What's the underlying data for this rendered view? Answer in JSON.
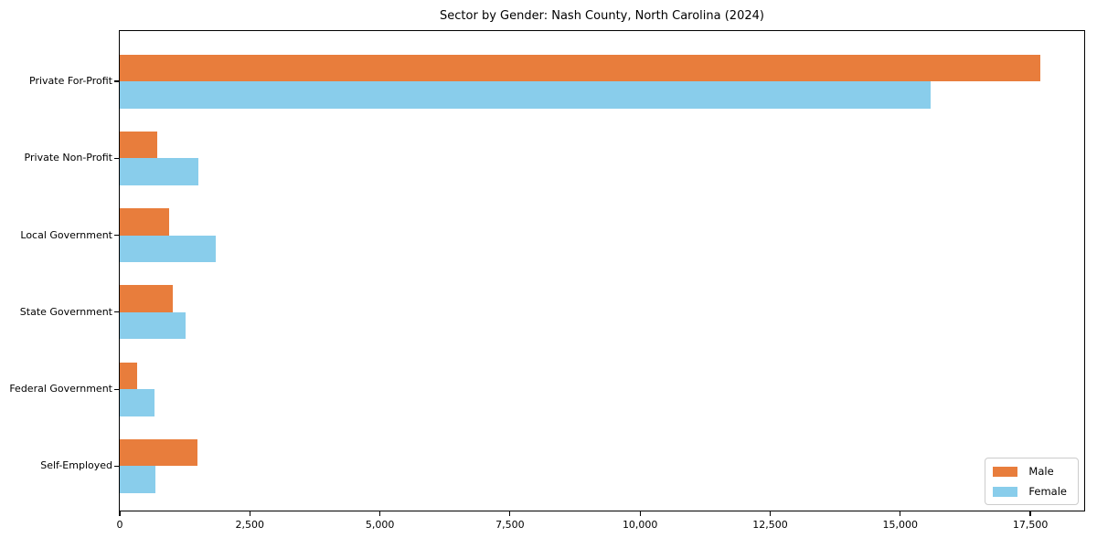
{
  "title": "Sector by Gender: Nash County, North Carolina (2024)",
  "colors": {
    "male": "#e87d3c",
    "female": "#89cdeb",
    "axis": "#000000",
    "legend_border": "#cccccc",
    "background": "#ffffff"
  },
  "legend": {
    "position": "lower right",
    "items": [
      {
        "label": "Male",
        "color": "#e87d3c"
      },
      {
        "label": "Female",
        "color": "#89cdeb"
      }
    ]
  },
  "chart_data": {
    "type": "bar",
    "orientation": "horizontal",
    "title": "Sector by Gender: Nash County, North Carolina (2024)",
    "xlabel": "",
    "ylabel": "",
    "categories": [
      "Private For-Profit",
      "Private Non-Profit",
      "Local Government",
      "State Government",
      "Federal Government",
      "Self-Employed"
    ],
    "series": [
      {
        "name": "Male",
        "color": "#e87d3c",
        "values": [
          17690,
          720,
          950,
          1020,
          330,
          1490
        ]
      },
      {
        "name": "Female",
        "color": "#89cdeb",
        "values": [
          15580,
          1510,
          1840,
          1260,
          670,
          690
        ]
      }
    ],
    "xlim": [
      0,
      18570
    ],
    "x_ticks": [
      0,
      2500,
      5000,
      7500,
      10000,
      12500,
      15000,
      17500
    ],
    "x_tick_labels": [
      "0",
      "2,500",
      "5,000",
      "7,500",
      "10,000",
      "12,500",
      "15,000",
      "17,500"
    ],
    "grid": false,
    "legend_position": "lower right"
  }
}
